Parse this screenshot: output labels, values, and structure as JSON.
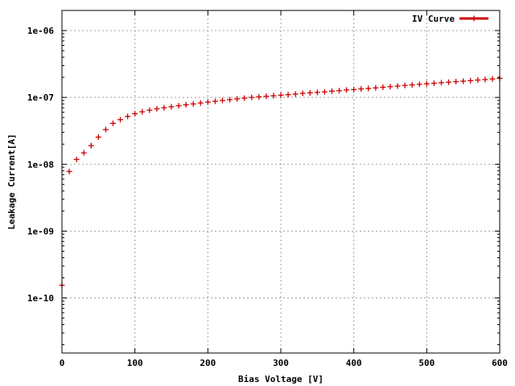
{
  "chart_data": {
    "type": "scatter",
    "title": "",
    "xlabel": "Bias Voltage [V]",
    "ylabel": "Leakage Current[A]",
    "xlim": [
      0,
      600
    ],
    "ylim": [
      1.5e-11,
      2e-06
    ],
    "yscale": "log",
    "grid": true,
    "legend_position": "top-right",
    "x_ticks": [
      {
        "value": 0,
        "label": "0"
      },
      {
        "value": 100,
        "label": "100"
      },
      {
        "value": 200,
        "label": "200"
      },
      {
        "value": 300,
        "label": "300"
      },
      {
        "value": 400,
        "label": "400"
      },
      {
        "value": 500,
        "label": "500"
      },
      {
        "value": 600,
        "label": "600"
      }
    ],
    "y_ticks": [
      {
        "value": 1e-10,
        "label": "1e-10"
      },
      {
        "value": 1e-09,
        "label": "1e-09"
      },
      {
        "value": 1e-08,
        "label": "1e-08"
      },
      {
        "value": 1e-07,
        "label": "1e-07"
      },
      {
        "value": 1e-06,
        "label": "1e-06"
      }
    ],
    "series": [
      {
        "name": "IV Curve",
        "color": "#cc0000",
        "marker": "plus",
        "x": [
          0,
          10,
          20,
          30,
          40,
          50,
          60,
          70,
          80,
          90,
          100,
          110,
          120,
          130,
          140,
          150,
          160,
          170,
          180,
          190,
          200,
          210,
          220,
          230,
          240,
          250,
          260,
          270,
          280,
          290,
          300,
          310,
          320,
          330,
          340,
          350,
          360,
          370,
          380,
          390,
          400,
          410,
          420,
          430,
          440,
          450,
          460,
          470,
          480,
          490,
          500,
          510,
          520,
          530,
          540,
          550,
          560,
          570,
          580,
          590,
          600
        ],
        "y": [
          1.55e-10,
          7.8e-09,
          1.18e-08,
          1.48e-08,
          1.9e-08,
          2.55e-08,
          3.3e-08,
          4.1e-08,
          4.65e-08,
          5.2e-08,
          5.7e-08,
          6.1e-08,
          6.45e-08,
          6.75e-08,
          7e-08,
          7.25e-08,
          7.5e-08,
          7.75e-08,
          8e-08,
          8.25e-08,
          8.5e-08,
          8.75e-08,
          9e-08,
          9.25e-08,
          9.5e-08,
          9.75e-08,
          1e-07,
          1.02e-07,
          1.04e-07,
          1.06e-07,
          1.08e-07,
          1.1e-07,
          1.12e-07,
          1.15e-07,
          1.17e-07,
          1.19e-07,
          1.21e-07,
          1.24e-07,
          1.26e-07,
          1.29e-07,
          1.31e-07,
          1.34e-07,
          1.36e-07,
          1.39e-07,
          1.42e-07,
          1.45e-07,
          1.48e-07,
          1.51e-07,
          1.54e-07,
          1.57e-07,
          1.6e-07,
          1.63e-07,
          1.66e-07,
          1.69e-07,
          1.72e-07,
          1.75e-07,
          1.78e-07,
          1.82e-07,
          1.85e-07,
          1.89e-07,
          1.93e-07
        ]
      }
    ]
  }
}
